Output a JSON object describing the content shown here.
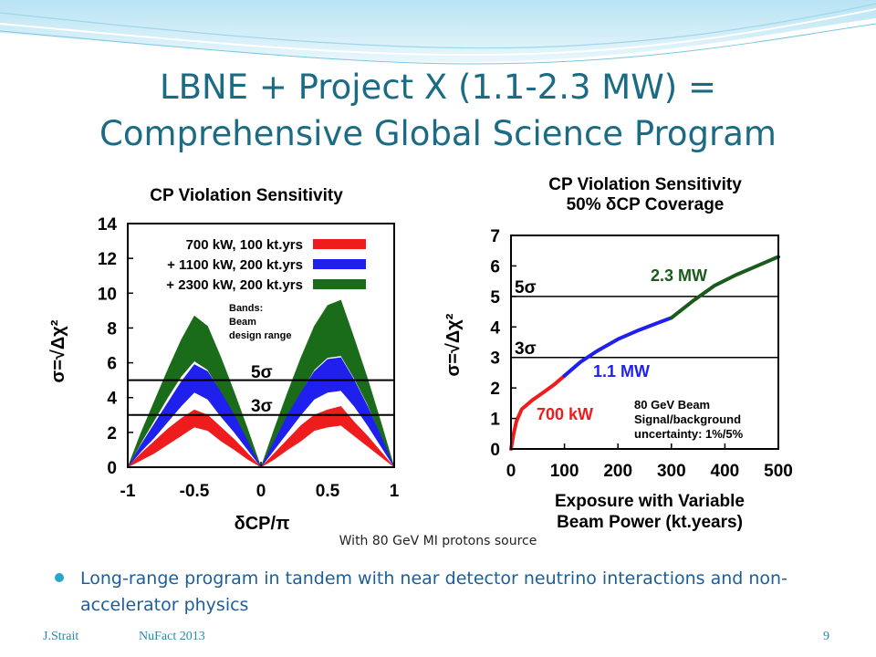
{
  "slide": {
    "title_line1": "LBNE + Project X (1.1-2.3 MW) =",
    "title_line2": "Comprehensive Global Science Program",
    "caption": "With 80 GeV MI protons source",
    "bullet": "Long-range program in tandem with near detector neutrino interactions and non-accelerator physics",
    "footer": {
      "author": "J.Strait",
      "event": "NuFact 2013",
      "page": "9"
    },
    "colors": {
      "title": "#1c6b84",
      "bullet_text": "#1c5e9a",
      "bullet_dot": "#2aa4c8",
      "footer": "#2c87a8"
    }
  },
  "chart_data": [
    {
      "type": "area",
      "title": "CP Violation Sensitivity",
      "xlabel": "δCP/π",
      "ylabel": "σ=√Δχ²",
      "xlim": [
        -1,
        1
      ],
      "ylim": [
        0,
        14
      ],
      "xticks": [
        "-1",
        "-0.5",
        "0",
        "0.5",
        "1"
      ],
      "yticks": [
        "0",
        "2",
        "4",
        "6",
        "8",
        "10",
        "12",
        "14"
      ],
      "legend_position": "top-right",
      "x": [
        -1,
        -0.9,
        -0.8,
        -0.7,
        -0.6,
        -0.5,
        -0.4,
        -0.3,
        -0.2,
        -0.1,
        0,
        0.1,
        0.2,
        0.3,
        0.4,
        0.5,
        0.6,
        0.7,
        0.8,
        0.9,
        1
      ],
      "series": [
        {
          "name": "700 kW, 100 kt.yrs",
          "color": "#ee1c1c",
          "lower": [
            0,
            0.4,
            0.8,
            1.3,
            1.8,
            2.3,
            2.1,
            1.5,
            1.0,
            0.45,
            0,
            0.45,
            1.0,
            1.5,
            2.1,
            2.3,
            2.4,
            1.8,
            1.2,
            0.6,
            0
          ],
          "upper": [
            0,
            0.8,
            1.5,
            2.2,
            2.8,
            3.3,
            3.0,
            2.3,
            1.6,
            0.8,
            0,
            0.8,
            1.6,
            2.4,
            3.0,
            3.3,
            3.5,
            2.6,
            1.8,
            0.9,
            0
          ]
        },
        {
          "name": "+ 1100 kW, 200 kt.yrs",
          "color": "#1f1fee",
          "lower": [
            0,
            0.9,
            1.7,
            2.6,
            3.5,
            4.3,
            3.9,
            2.9,
            2.0,
            1.0,
            0,
            1.0,
            2.0,
            3.0,
            3.9,
            4.3,
            4.4,
            3.5,
            2.4,
            1.2,
            0
          ],
          "upper": [
            0,
            1.3,
            2.5,
            3.7,
            4.9,
            5.9,
            5.5,
            4.3,
            3.0,
            1.5,
            0,
            1.5,
            3.0,
            4.3,
            5.5,
            6.2,
            6.3,
            5.0,
            3.5,
            1.8,
            0
          ]
        },
        {
          "name": "+ 2300 kW, 200 kt.yrs",
          "color": "#1a6b1a",
          "lower": [
            0,
            1.4,
            2.7,
            4.0,
            5.2,
            6.1,
            5.6,
            4.3,
            3.0,
            1.5,
            0,
            1.5,
            3.0,
            4.3,
            5.6,
            6.3,
            6.4,
            5.1,
            3.6,
            1.8,
            0
          ],
          "upper": [
            0,
            2.0,
            3.8,
            5.6,
            7.3,
            8.7,
            8.1,
            6.3,
            4.3,
            2.2,
            0,
            2.2,
            4.3,
            6.3,
            8.1,
            9.3,
            9.6,
            7.4,
            5.1,
            2.6,
            0
          ]
        }
      ],
      "reference_lines": [
        {
          "y": 5,
          "label": "5σ"
        },
        {
          "y": 3,
          "label": "3σ"
        }
      ],
      "annotation": {
        "lines": [
          "Bands:",
          "Beam",
          "design range"
        ]
      }
    },
    {
      "type": "line",
      "title_line1": "CP Violation Sensitivity",
      "title_line2": "50% δCP Coverage",
      "xlabel_line1": "Exposure with Variable",
      "xlabel_line2": "Beam Power (kt.years)",
      "ylabel": "σ=√Δχ²",
      "xlim": [
        0,
        500
      ],
      "ylim": [
        0,
        7
      ],
      "xticks": [
        "0",
        "100",
        "200",
        "300",
        "400",
        "500"
      ],
      "yticks": [
        "0",
        "1",
        "2",
        "3",
        "4",
        "5",
        "6",
        "7"
      ],
      "series": [
        {
          "name": "700 kW",
          "color": "#ee1c1c",
          "x": [
            0,
            5,
            10,
            20,
            40,
            60,
            80,
            100
          ],
          "y": [
            0,
            0.5,
            0.9,
            1.3,
            1.6,
            1.85,
            2.1,
            2.4
          ]
        },
        {
          "name": "1.1 MW",
          "color": "#1f1fee",
          "x": [
            100,
            130,
            160,
            200,
            240,
            270,
            300
          ],
          "y": [
            2.4,
            2.85,
            3.2,
            3.6,
            3.9,
            4.1,
            4.3
          ]
        },
        {
          "name": "2.3 MW",
          "color": "#1a5a1a",
          "x": [
            300,
            340,
            380,
            420,
            460,
            500
          ],
          "y": [
            4.3,
            4.85,
            5.35,
            5.7,
            6.0,
            6.3
          ]
        }
      ],
      "reference_lines": [
        {
          "y": 5,
          "label": "5σ"
        },
        {
          "y": 3,
          "label": "3σ"
        }
      ],
      "annotation": {
        "lines": [
          "80 GeV Beam",
          "Signal/background",
          "uncertainty: 1%/5%"
        ]
      }
    }
  ]
}
